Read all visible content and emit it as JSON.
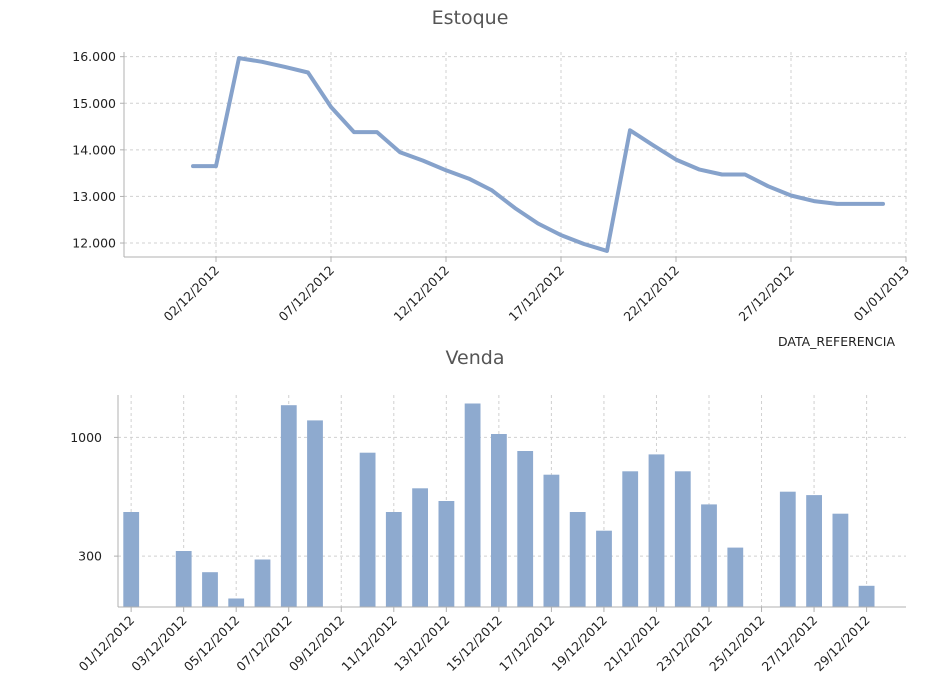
{
  "chart_data": [
    {
      "type": "line",
      "title": "Estoque",
      "xlabel": "DATA_REFERENCIA",
      "ylabel": "",
      "ylim": [
        11700,
        16100
      ],
      "xlim": [
        "2012-11-28",
        "2013-01-01"
      ],
      "yticks": [
        12000,
        13000,
        14000,
        15000,
        16000
      ],
      "yticklabels": [
        "12.000",
        "13.000",
        "14.000",
        "15.000",
        "16.000"
      ],
      "xticks": [
        "2012-12-02",
        "2012-12-07",
        "2012-12-12",
        "2012-12-17",
        "2012-12-22",
        "2012-12-27",
        "2013-01-01"
      ],
      "xticklabels": [
        "02/12/2012",
        "07/12/2012",
        "12/12/2012",
        "17/12/2012",
        "22/12/2012",
        "27/12/2012",
        "01/01/2013"
      ],
      "grid": true,
      "series": [
        {
          "x": [
            "2012-12-01",
            "2012-12-02",
            "2012-12-03",
            "2012-12-04",
            "2012-12-05",
            "2012-12-06",
            "2012-12-07",
            "2012-12-08",
            "2012-12-09",
            "2012-12-10",
            "2012-12-11",
            "2012-12-12",
            "2012-12-13",
            "2012-12-14",
            "2012-12-15",
            "2012-12-16",
            "2012-12-17",
            "2012-12-18",
            "2012-12-19",
            "2012-12-20",
            "2012-12-21",
            "2012-12-22",
            "2012-12-23",
            "2012-12-24",
            "2012-12-25",
            "2012-12-26",
            "2012-12-27",
            "2012-12-28",
            "2012-12-29",
            "2012-12-30",
            "2012-12-31"
          ],
          "values": [
            13650,
            13650,
            15970,
            15890,
            15780,
            15660,
            14920,
            14380,
            14380,
            13950,
            13770,
            13560,
            13380,
            13130,
            12750,
            12420,
            12170,
            11980,
            11830,
            14420,
            14100,
            13790,
            13580,
            13470,
            13470,
            13220,
            13020,
            12900,
            12840,
            12840,
            12840
          ],
          "color": "#86a2cb"
        }
      ]
    },
    {
      "type": "bar",
      "title": "Venda",
      "xlabel": "",
      "ylabel": "",
      "ylim": [
        0,
        1250
      ],
      "yticks": [
        300,
        1000
      ],
      "yticklabels": [
        "300",
        "1000"
      ],
      "grid": true,
      "categories": [
        "01/12/2012",
        "02/12/2012",
        "03/12/2012",
        "04/12/2012",
        "05/12/2012",
        "06/12/2012",
        "07/12/2012",
        "08/12/2012",
        "09/12/2012",
        "10/12/2012",
        "11/12/2012",
        "12/12/2012",
        "13/12/2012",
        "14/12/2012",
        "15/12/2012",
        "16/12/2012",
        "17/12/2012",
        "18/12/2012",
        "19/12/2012",
        "20/12/2012",
        "21/12/2012",
        "22/12/2012",
        "23/12/2012",
        "24/12/2012",
        "25/12/2012",
        "26/12/2012",
        "27/12/2012",
        "28/12/2012",
        "29/12/2012",
        "30/12/2012"
      ],
      "xticklabels": [
        "01/12/2012",
        "03/12/2012",
        "05/12/2012",
        "07/12/2012",
        "09/12/2012",
        "11/12/2012",
        "13/12/2012",
        "15/12/2012",
        "17/12/2012",
        "19/12/2012",
        "21/12/2012",
        "23/12/2012",
        "25/12/2012",
        "27/12/2012",
        "29/12/2012"
      ],
      "values": [
        560,
        null,
        330,
        205,
        50,
        280,
        1190,
        1100,
        null,
        910,
        560,
        700,
        625,
        1200,
        1020,
        920,
        780,
        560,
        450,
        800,
        900,
        800,
        605,
        350,
        null,
        680,
        660,
        550,
        125,
        null
      ],
      "color": "#8eaacf"
    }
  ]
}
